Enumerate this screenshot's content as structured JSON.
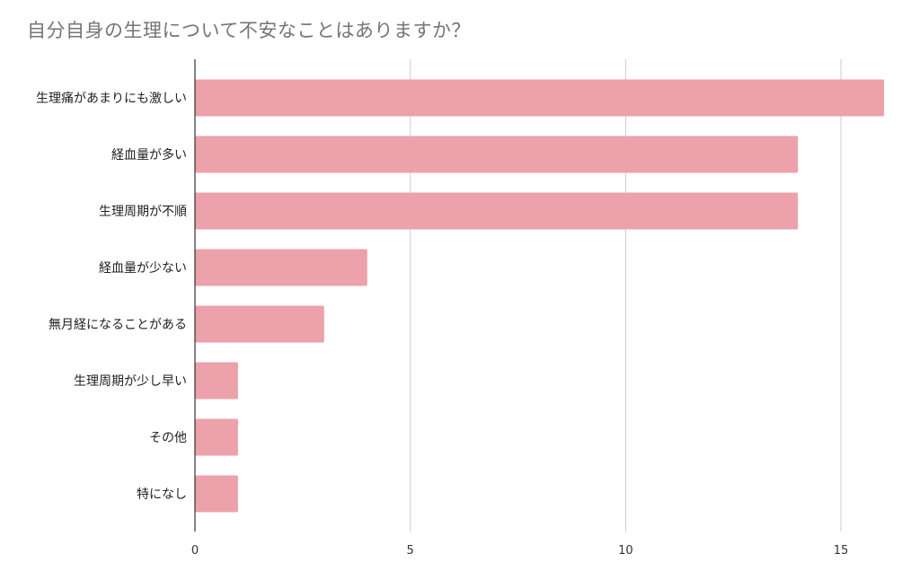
{
  "chart_data": {
    "type": "bar",
    "orientation": "horizontal",
    "title": "自分自身の生理について不安なことはありますか？",
    "categories": [
      "生理痛があまりにも激しい",
      "経血量が多い",
      "生理周期が不順",
      "経血量が少ない",
      "無月経になることがある",
      "生理周期が少し早い",
      "その他",
      "特になし"
    ],
    "values": [
      16,
      14,
      14,
      4,
      3,
      1,
      1,
      1
    ],
    "xticks": [
      "0",
      "5",
      "10",
      "15"
    ],
    "xlim": [
      0,
      16
    ],
    "xlabel": "",
    "ylabel": "",
    "grid": true,
    "bar_color": "#eda1ab",
    "grid_color": "#cccccc",
    "axis_color": "#333333"
  }
}
